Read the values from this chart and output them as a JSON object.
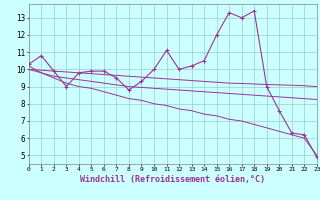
{
  "title": "",
  "xlabel": "Windchill (Refroidissement éolien,°C)",
  "x": [
    0,
    1,
    2,
    3,
    4,
    5,
    6,
    7,
    8,
    9,
    10,
    11,
    12,
    13,
    14,
    15,
    16,
    17,
    18,
    19,
    20,
    21,
    22,
    23
  ],
  "y_main": [
    10.3,
    10.8,
    9.9,
    9.0,
    9.8,
    9.9,
    9.9,
    9.5,
    8.8,
    9.3,
    10.0,
    11.1,
    10.0,
    10.2,
    10.5,
    12.0,
    13.3,
    13.0,
    13.4,
    9.0,
    7.6,
    6.3,
    6.2,
    4.9
  ],
  "y_trend_flat": [
    10.0,
    9.95,
    9.9,
    9.85,
    9.8,
    9.75,
    9.7,
    9.65,
    9.6,
    9.55,
    9.5,
    9.45,
    9.4,
    9.35,
    9.3,
    9.25,
    9.2,
    9.18,
    9.15,
    9.12,
    9.1,
    9.08,
    9.05,
    9.0
  ],
  "y_trend_mid": [
    10.0,
    9.8,
    9.6,
    9.5,
    9.4,
    9.3,
    9.2,
    9.1,
    9.0,
    8.95,
    8.9,
    8.85,
    8.8,
    8.75,
    8.7,
    8.65,
    8.6,
    8.55,
    8.5,
    8.45,
    8.4,
    8.35,
    8.3,
    8.25
  ],
  "y_trend_steep": [
    10.2,
    9.8,
    9.5,
    9.2,
    9.0,
    8.9,
    8.7,
    8.5,
    8.3,
    8.2,
    8.0,
    7.9,
    7.7,
    7.6,
    7.4,
    7.3,
    7.1,
    7.0,
    6.8,
    6.6,
    6.4,
    6.2,
    6.0,
    5.0
  ],
  "line_color": "#993399",
  "bg_color": "#ccffff",
  "grid_color": "#99cccc",
  "ylim": [
    4.5,
    13.8
  ],
  "xlim": [
    0,
    23
  ],
  "yticks": [
    5,
    6,
    7,
    8,
    9,
    10,
    11,
    12,
    13
  ],
  "xticks": [
    0,
    1,
    2,
    3,
    4,
    5,
    6,
    7,
    8,
    9,
    10,
    11,
    12,
    13,
    14,
    15,
    16,
    17,
    18,
    19,
    20,
    21,
    22,
    23
  ]
}
